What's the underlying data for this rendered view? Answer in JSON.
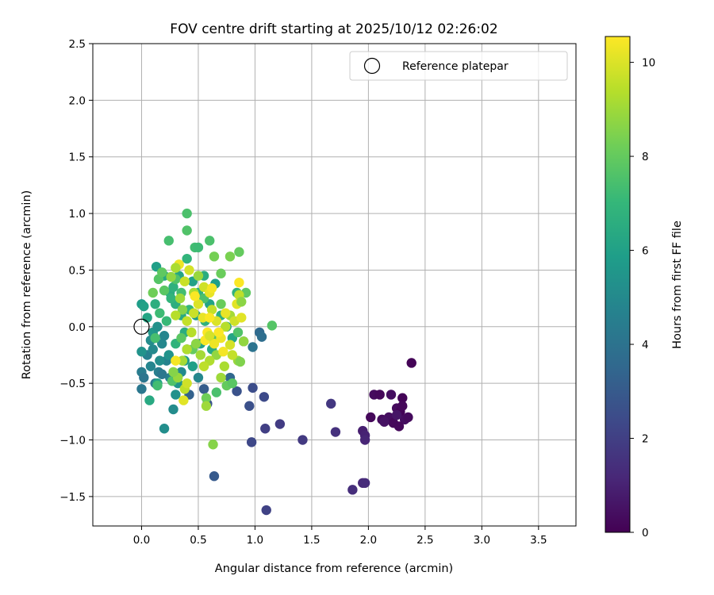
{
  "chart_data": {
    "type": "scatter",
    "title": "FOV centre drift starting at 2025/10/12 02:26:02",
    "xlabel": "Angular distance from reference (arcmin)",
    "ylabel": "Rotation from reference (arcmin)",
    "xlim": [
      -0.43,
      3.83
    ],
    "ylim": [
      -1.76,
      2.5
    ],
    "x_ticks": [
      0.0,
      0.5,
      1.0,
      1.5,
      2.0,
      2.5,
      3.0,
      3.5
    ],
    "x_tick_labels": [
      "0.0",
      "0.5",
      "1.0",
      "1.5",
      "2.0",
      "2.5",
      "3.0",
      "3.5"
    ],
    "y_ticks": [
      -1.5,
      -1.0,
      -0.5,
      0.0,
      0.5,
      1.0,
      1.5,
      2.0,
      2.5
    ],
    "y_tick_labels": [
      "−1.5",
      "−1.0",
      "−0.5",
      "0.0",
      "0.5",
      "1.0",
      "1.5",
      "2.0",
      "2.5"
    ],
    "grid": true,
    "legend": {
      "position": "top-right",
      "entries": [
        "Reference platepar"
      ]
    },
    "reference_point": {
      "x": 0.0,
      "y": 0.0,
      "label": "Reference platepar"
    },
    "colorbar": {
      "label": "Hours from first FF file",
      "range": [
        0,
        10.55
      ],
      "ticks": [
        0,
        2,
        4,
        6,
        8,
        10
      ],
      "tick_labels": [
        "0",
        "2",
        "4",
        "6",
        "8",
        "10"
      ],
      "colormap": "viridis"
    },
    "colormap_stops": [
      "#440154",
      "#482878",
      "#3e4989",
      "#31688e",
      "#26828e",
      "#1f9e89",
      "#35b779",
      "#6ece58",
      "#b5de2b",
      "#fde725"
    ],
    "series": [
      {
        "points": [
          [
            2.38,
            -0.32,
            0.1
          ],
          [
            2.05,
            -0.6,
            0.3
          ],
          [
            2.1,
            -0.6,
            0.2
          ],
          [
            2.2,
            -0.6,
            0.4
          ],
          [
            2.3,
            -0.63,
            0.1
          ],
          [
            2.02,
            -0.8,
            0.2
          ],
          [
            2.12,
            -0.82,
            0.3
          ],
          [
            2.18,
            -0.8,
            0.4
          ],
          [
            2.22,
            -0.85,
            0.2
          ],
          [
            2.25,
            -0.72,
            0.3
          ],
          [
            2.28,
            -0.75,
            0.1
          ],
          [
            2.3,
            -0.7,
            0.2
          ],
          [
            2.32,
            -0.82,
            0.4
          ],
          [
            2.35,
            -0.8,
            0.3
          ],
          [
            2.27,
            -0.88,
            0.2
          ],
          [
            2.14,
            -0.84,
            0.5
          ],
          [
            2.25,
            -0.78,
            0.6
          ],
          [
            1.95,
            -0.92,
            0.9
          ],
          [
            1.97,
            -0.96,
            1.0
          ],
          [
            1.97,
            -1.0,
            1.1
          ],
          [
            1.95,
            -1.38,
            1.2
          ],
          [
            1.97,
            -1.38,
            1.3
          ],
          [
            1.86,
            -1.44,
            1.4
          ],
          [
            1.71,
            -0.93,
            1.5
          ],
          [
            1.67,
            -0.68,
            1.7
          ],
          [
            1.42,
            -1.0,
            1.8
          ],
          [
            1.22,
            -0.86,
            1.9
          ],
          [
            1.09,
            -0.9,
            2.0
          ],
          [
            1.1,
            -1.62,
            2.1
          ],
          [
            0.97,
            -1.02,
            2.3
          ],
          [
            1.08,
            -0.62,
            2.4
          ],
          [
            0.98,
            -0.54,
            2.5
          ],
          [
            0.95,
            -0.7,
            2.6
          ],
          [
            0.84,
            -0.57,
            2.7
          ],
          [
            0.64,
            -1.32,
            3.0
          ],
          [
            0.58,
            -0.68,
            2.8
          ],
          [
            0.55,
            -0.55,
            3.1
          ],
          [
            0.42,
            -0.6,
            3.3
          ],
          [
            0.78,
            -0.45,
            3.5
          ],
          [
            1.04,
            -0.05,
            3.6
          ],
          [
            1.06,
            -0.09,
            3.8
          ],
          [
            0.98,
            -0.18,
            4.0
          ],
          [
            0.9,
            -0.13,
            3.9
          ],
          [
            0.0,
            -0.55,
            4.2
          ],
          [
            0.0,
            -0.4,
            4.4
          ],
          [
            0.02,
            -0.45,
            4.1
          ],
          [
            0.05,
            -0.25,
            4.6
          ],
          [
            0.08,
            -0.35,
            4.8
          ],
          [
            0.1,
            -0.2,
            5.0
          ],
          [
            0.12,
            -0.5,
            4.3
          ],
          [
            0.15,
            -0.4,
            4.5
          ],
          [
            0.2,
            -0.9,
            5.2
          ],
          [
            0.07,
            -0.65,
            6.4
          ],
          [
            0.0,
            -0.22,
            5.4
          ],
          [
            0.0,
            0.2,
            5.8
          ],
          [
            0.02,
            0.18,
            6.0
          ],
          [
            0.05,
            0.08,
            6.2
          ],
          [
            0.1,
            -0.05,
            5.6
          ],
          [
            0.14,
            0.0,
            5.3
          ],
          [
            0.18,
            -0.15,
            4.9
          ],
          [
            0.22,
            -0.3,
            4.7
          ],
          [
            0.25,
            -0.45,
            4.6
          ],
          [
            0.28,
            -0.73,
            5.1
          ],
          [
            0.32,
            -0.5,
            5.5
          ],
          [
            0.35,
            -0.4,
            5.0
          ],
          [
            0.38,
            -0.3,
            5.7
          ],
          [
            0.4,
            -0.2,
            4.6
          ],
          [
            0.45,
            -0.35,
            5.9
          ],
          [
            0.5,
            -0.45,
            4.9
          ],
          [
            0.12,
            -0.1,
            4.4
          ],
          [
            0.16,
            -0.3,
            5.2
          ],
          [
            0.2,
            -0.08,
            4.8
          ],
          [
            0.24,
            -0.25,
            5.4
          ],
          [
            0.08,
            -0.12,
            5.1
          ],
          [
            0.14,
            -0.5,
            6.1
          ],
          [
            0.18,
            -0.42,
            4.2
          ],
          [
            0.3,
            -0.6,
            5.3
          ],
          [
            0.13,
            0.53,
            5.9
          ],
          [
            0.2,
            0.45,
            6.3
          ],
          [
            0.25,
            0.3,
            6.5
          ],
          [
            0.3,
            0.2,
            6.6
          ],
          [
            0.35,
            0.1,
            6.4
          ],
          [
            0.28,
            0.35,
            6.7
          ],
          [
            0.33,
            0.45,
            6.2
          ],
          [
            0.4,
            0.6,
            6.9
          ],
          [
            0.45,
            0.4,
            6.0
          ],
          [
            0.5,
            0.3,
            6.8
          ],
          [
            0.55,
            0.45,
            6.5
          ],
          [
            0.6,
            0.2,
            6.1
          ],
          [
            0.65,
            0.38,
            5.9
          ],
          [
            0.7,
            0.1,
            6.6
          ],
          [
            0.75,
            0.0,
            6.3
          ],
          [
            0.8,
            -0.1,
            6.2
          ],
          [
            0.84,
            0.3,
            6.8
          ],
          [
            0.42,
            0.15,
            7.0
          ],
          [
            0.22,
            0.05,
            7.1
          ],
          [
            0.26,
            0.25,
            6.9
          ],
          [
            0.38,
            -0.05,
            6.5
          ],
          [
            0.48,
            0.1,
            5.8
          ],
          [
            0.52,
            -0.15,
            6.0
          ],
          [
            0.56,
            0.05,
            6.7
          ],
          [
            0.62,
            -0.2,
            6.4
          ],
          [
            0.12,
            0.2,
            6.6
          ],
          [
            0.16,
            0.12,
            7.2
          ],
          [
            0.3,
            -0.15,
            6.8
          ],
          [
            0.4,
            1.0,
            7.5
          ],
          [
            0.4,
            0.85,
            7.6
          ],
          [
            0.24,
            0.76,
            7.4
          ],
          [
            0.47,
            0.7,
            7.3
          ],
          [
            0.6,
            0.76,
            7.5
          ],
          [
            0.5,
            0.7,
            7.2
          ],
          [
            0.86,
            0.66,
            8.0
          ],
          [
            0.78,
            0.62,
            8.4
          ],
          [
            0.64,
            0.62,
            8.3
          ],
          [
            0.7,
            0.47,
            8.1
          ],
          [
            0.92,
            0.3,
            7.9
          ],
          [
            1.15,
            0.01,
            7.7
          ],
          [
            0.85,
            -0.05,
            7.6
          ],
          [
            0.15,
            0.42,
            7.7
          ],
          [
            0.2,
            0.32,
            7.8
          ],
          [
            0.1,
            0.3,
            8.2
          ],
          [
            0.18,
            0.48,
            7.9
          ],
          [
            0.12,
            -0.1,
            7.4
          ],
          [
            0.14,
            -0.52,
            7.3
          ],
          [
            0.27,
            -0.48,
            7.6
          ],
          [
            0.35,
            -0.1,
            7.8
          ],
          [
            0.45,
            -0.2,
            8.0
          ],
          [
            0.55,
            0.25,
            7.5
          ],
          [
            0.62,
            -0.1,
            7.6
          ],
          [
            0.7,
            0.2,
            8.1
          ],
          [
            0.75,
            -0.52,
            8.0
          ],
          [
            0.8,
            -0.5,
            7.8
          ],
          [
            0.66,
            -0.58,
            7.5
          ],
          [
            0.57,
            -0.63,
            8.2
          ],
          [
            0.3,
            0.42,
            7.6
          ],
          [
            0.35,
            0.3,
            7.3
          ],
          [
            0.63,
            -1.04,
            8.6
          ],
          [
            0.85,
            -0.3,
            8.9
          ],
          [
            0.73,
            -0.35,
            9.2
          ],
          [
            0.7,
            -0.45,
            9.0
          ],
          [
            0.66,
            -0.25,
            8.8
          ],
          [
            0.6,
            -0.3,
            9.3
          ],
          [
            0.55,
            -0.35,
            9.5
          ],
          [
            0.52,
            -0.25,
            9.1
          ],
          [
            0.48,
            -0.15,
            8.7
          ],
          [
            0.44,
            -0.05,
            9.4
          ],
          [
            0.4,
            0.05,
            9.6
          ],
          [
            0.36,
            0.15,
            8.6
          ],
          [
            0.34,
            0.25,
            9.0
          ],
          [
            0.38,
            0.4,
            9.7
          ],
          [
            0.42,
            0.5,
            9.9
          ],
          [
            0.46,
            0.3,
            9.2
          ],
          [
            0.5,
            0.45,
            8.9
          ],
          [
            0.55,
            0.35,
            9.8
          ],
          [
            0.6,
            0.3,
            10.2
          ],
          [
            0.62,
            0.15,
            9.6
          ],
          [
            0.66,
            0.05,
            10.0
          ],
          [
            0.7,
            -0.1,
            10.3
          ],
          [
            0.74,
            0.0,
            9.4
          ],
          [
            0.78,
            0.1,
            9.1
          ],
          [
            0.82,
            0.05,
            9.8
          ],
          [
            0.84,
            0.2,
            10.1
          ],
          [
            0.86,
            0.28,
            9.5
          ],
          [
            0.88,
            0.22,
            8.7
          ],
          [
            0.9,
            -0.13,
            8.8
          ],
          [
            0.87,
            -0.31,
            8.5
          ],
          [
            0.78,
            -0.16,
            9.9
          ],
          [
            0.72,
            -0.22,
            10.4
          ],
          [
            0.68,
            -0.05,
            10.5
          ],
          [
            0.64,
            -0.15,
            10.3
          ],
          [
            0.58,
            -0.05,
            10.5
          ],
          [
            0.54,
            0.08,
            10.2
          ],
          [
            0.5,
            0.2,
            10.0
          ],
          [
            0.46,
            0.12,
            9.7
          ],
          [
            0.4,
            -0.2,
            9.3
          ],
          [
            0.36,
            -0.3,
            9.1
          ],
          [
            0.32,
            -0.45,
            8.9
          ],
          [
            0.38,
            -0.55,
            9.5
          ],
          [
            0.37,
            -0.65,
            10.1
          ],
          [
            0.4,
            -0.5,
            9.8
          ],
          [
            0.28,
            -0.4,
            8.6
          ],
          [
            0.3,
            -0.3,
            10.4
          ],
          [
            0.33,
            0.55,
            10.3
          ],
          [
            0.26,
            0.44,
            8.8
          ],
          [
            0.3,
            0.52,
            9.2
          ],
          [
            0.47,
            0.27,
            10.5
          ],
          [
            0.56,
            -0.12,
            10.5
          ],
          [
            0.6,
            -0.08,
            9.9
          ],
          [
            0.86,
            0.39,
            10.5
          ],
          [
            0.88,
            0.08,
            10.1
          ],
          [
            0.57,
            -0.7,
            9.0
          ],
          [
            0.3,
            0.1,
            9.4
          ],
          [
            0.62,
            0.34,
            10.4
          ],
          [
            0.6,
            0.08,
            10.5
          ],
          [
            0.74,
            0.12,
            10.2
          ],
          [
            0.8,
            -0.25,
            9.6
          ]
        ]
      }
    ]
  }
}
